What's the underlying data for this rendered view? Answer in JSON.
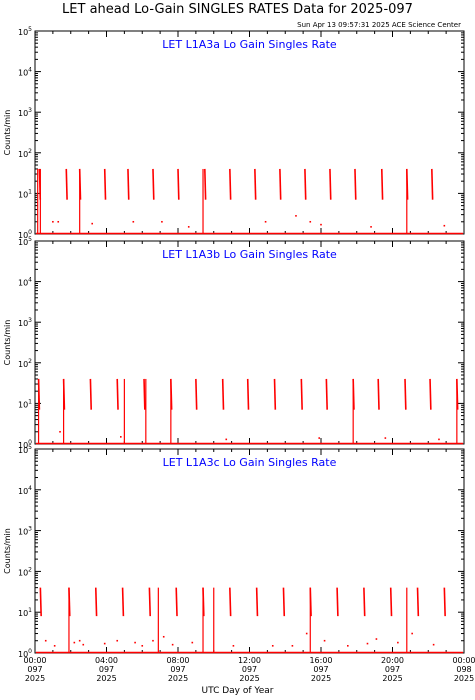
{
  "title": "LET ahead Lo-Gain SINGLES RATES Data for 2025-097",
  "timestamp": "Sun Apr 13 09:57:31 2025 ACE Science Center",
  "xlabel": "UTC Day of Year",
  "colors": {
    "series": "#ff0000",
    "panel_label": "#0000ff",
    "axes": "#000000"
  },
  "chart_data": [
    {
      "type": "scatter",
      "label": "LET L1A3a Lo Gain Singles Rate",
      "ylabel": "Counts/min",
      "yscale": "log",
      "ylim": [
        1,
        100000
      ],
      "y_ticks": [
        "10^0",
        "10^1",
        "10^2",
        "10^3",
        "10^4",
        "10^5"
      ],
      "xlim_hours": [
        0,
        24
      ],
      "spike_hours": [
        0.25,
        1.75,
        2.5,
        3.9,
        5.2,
        6.6,
        8.0,
        9.5,
        10.9,
        12.3,
        13.7,
        15.1,
        16.5,
        17.9,
        19.4,
        20.8,
        22.2
      ],
      "spike_top": 40,
      "spike_bottom": 7,
      "tall_spikes_hours": [
        0.15,
        0.3,
        2.5,
        9.4,
        20.8
      ],
      "background_level": 1.0,
      "scatter_points": [
        [
          1.0,
          2
        ],
        [
          1.3,
          2
        ],
        [
          3.2,
          1.8
        ],
        [
          5.5,
          2
        ],
        [
          7.1,
          2
        ],
        [
          8.6,
          1.5
        ],
        [
          12.9,
          2
        ],
        [
          14.6,
          2.8
        ],
        [
          15.4,
          2
        ],
        [
          16.0,
          1.7
        ],
        [
          18.8,
          1.5
        ],
        [
          22.9,
          1.6
        ]
      ]
    },
    {
      "type": "scatter",
      "label": "LET L1A3b Lo Gain Singles Rate",
      "ylabel": "Counts/min",
      "yscale": "log",
      "ylim": [
        1,
        100000
      ],
      "y_ticks": [
        "10^0",
        "10^1",
        "10^2",
        "10^3",
        "10^4",
        "10^5"
      ],
      "xlim_hours": [
        0,
        24
      ],
      "spike_hours": [
        0.2,
        1.6,
        3.1,
        4.6,
        6.1,
        7.6,
        9.0,
        10.5,
        11.9,
        13.4,
        14.9,
        16.3,
        17.8,
        19.2,
        20.7,
        22.1,
        23.6
      ],
      "spike_top": 40,
      "spike_bottom": 7,
      "tall_spikes_hours": [
        0.2,
        1.6,
        5.0,
        6.2,
        7.6,
        17.8,
        23.6
      ],
      "background_level": 1.0,
      "scatter_points": [
        [
          1.4,
          2
        ],
        [
          4.8,
          1.5
        ],
        [
          10.7,
          1.3
        ],
        [
          15.9,
          1.4
        ],
        [
          19.6,
          1.4
        ],
        [
          22.6,
          1.3
        ]
      ]
    },
    {
      "type": "scatter",
      "label": "LET L1A3c Lo Gain Singles Rate",
      "ylabel": "Counts/min",
      "yscale": "log",
      "ylim": [
        1,
        100000
      ],
      "y_ticks": [
        "10^0",
        "10^1",
        "10^2",
        "10^3",
        "10^4",
        "10^5"
      ],
      "xlim_hours": [
        0,
        24
      ],
      "spike_hours": [
        0.3,
        1.9,
        3.4,
        4.9,
        6.4,
        7.9,
        9.4,
        10.9,
        12.4,
        13.9,
        15.4,
        16.9,
        18.4,
        19.9,
        21.4,
        22.9
      ],
      "spike_top": 40,
      "spike_bottom": 8,
      "tall_spikes_hours": [
        1.9,
        6.9,
        9.4,
        10.0,
        15.4,
        20.8
      ],
      "background_level": 1.0,
      "scatter_points": [
        [
          0.6,
          2
        ],
        [
          1.1,
          1.5
        ],
        [
          2.2,
          1.8
        ],
        [
          2.5,
          2
        ],
        [
          2.7,
          1.6
        ],
        [
          3.9,
          1.7
        ],
        [
          4.6,
          2
        ],
        [
          5.6,
          1.8
        ],
        [
          6.0,
          1.5
        ],
        [
          6.6,
          2
        ],
        [
          7.2,
          2.5
        ],
        [
          7.7,
          1.6
        ],
        [
          8.8,
          1.8
        ],
        [
          11.1,
          1.5
        ],
        [
          13.3,
          1.5
        ],
        [
          14.4,
          1.5
        ],
        [
          15.2,
          3
        ],
        [
          16.2,
          2
        ],
        [
          17.5,
          1.5
        ],
        [
          18.6,
          1.7
        ],
        [
          19.1,
          2.2
        ],
        [
          20.3,
          1.8
        ],
        [
          21.1,
          3
        ],
        [
          22.3,
          1.6
        ]
      ]
    }
  ],
  "x_ticks": [
    {
      "time": "00:00",
      "day": "097",
      "year": "2025"
    },
    {
      "time": "04:00",
      "day": "097",
      "year": "2025"
    },
    {
      "time": "08:00",
      "day": "097",
      "year": "2025"
    },
    {
      "time": "12:00",
      "day": "097",
      "year": "2025"
    },
    {
      "time": "16:00",
      "day": "097",
      "year": "2025"
    },
    {
      "time": "20:00",
      "day": "097",
      "year": "2025"
    },
    {
      "time": "00:00",
      "day": "098",
      "year": "2025"
    }
  ]
}
